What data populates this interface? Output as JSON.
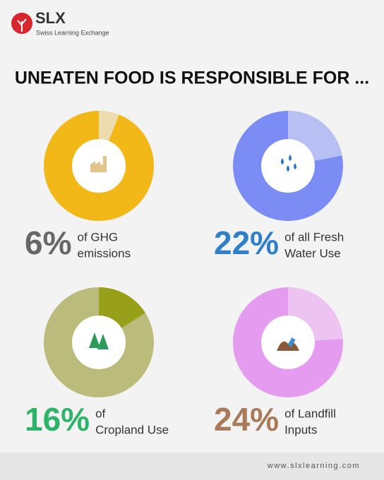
{
  "header": {
    "logo": "SLX",
    "tagline": "Swiss Learning Exchange"
  },
  "title": "UNEATEN FOOD IS RESPONSIBLE FOR ...",
  "chart_data": [
    {
      "type": "pie",
      "values": [
        6
      ],
      "value_labels": [
        "6%"
      ],
      "caption": [
        "of GHG",
        "emissions"
      ],
      "color": "#ecdcae",
      "ring_color": "#f2b817",
      "label_color": "#666666"
    },
    {
      "type": "pie",
      "values": [
        22
      ],
      "value_labels": [
        "22%"
      ],
      "caption": [
        "of all Fresh",
        "Water Use"
      ],
      "color": "#b8bff2",
      "ring_color": "#7b8cf5",
      "label_color": "#2f7fc9"
    },
    {
      "type": "pie",
      "values": [
        16
      ],
      "value_labels": [
        "16%"
      ],
      "caption": [
        "of",
        "Cropland Use"
      ],
      "color": "#98a01a",
      "ring_color": "#bbbb7c",
      "label_color": "#2db36a"
    },
    {
      "type": "pie",
      "values": [
        24
      ],
      "value_labels": [
        "24%"
      ],
      "caption": [
        "of Landfill",
        "Inputs"
      ],
      "color": "#ecc3f1",
      "ring_color": "#e59cf0",
      "label_color": "#a87b5a"
    }
  ],
  "footer": "www.slxlearning.com"
}
